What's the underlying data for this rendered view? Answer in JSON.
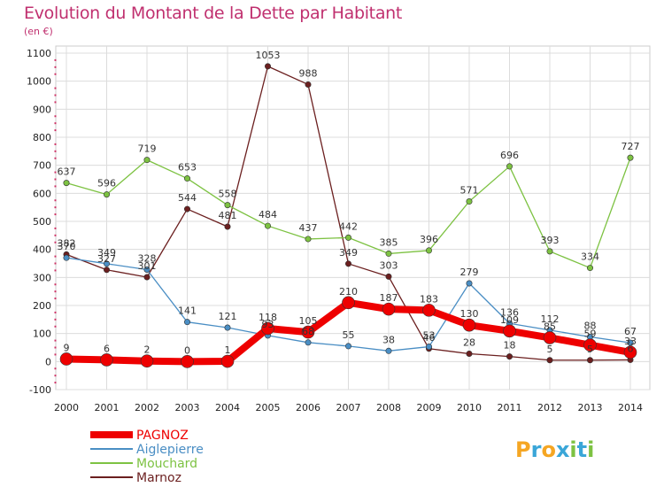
{
  "title": "Evolution du Montant de la Dette par Habitant",
  "unit_label": "(en €)",
  "brand": "Proxiti",
  "chart_data": {
    "type": "line",
    "title": "Evolution du Montant de la Dette par Habitant",
    "subtitle": "(en €)",
    "xlabel": "",
    "ylabel": "",
    "x": [
      "2000",
      "2001",
      "2002",
      "2003",
      "2004",
      "2005",
      "2006",
      "2007",
      "2008",
      "2009",
      "2010",
      "2011",
      "2012",
      "2013",
      "2014"
    ],
    "ylim": [
      -100,
      1100
    ],
    "yticks": [
      -100,
      0,
      100,
      200,
      300,
      400,
      500,
      600,
      700,
      800,
      900,
      1000,
      1100
    ],
    "grid": true,
    "legend_position": "bottom-left",
    "series": [
      {
        "name": "PAGNOZ",
        "color": "#ee0000",
        "values": [
          9,
          6,
          2,
          0,
          1,
          118,
          105,
          210,
          187,
          183,
          130,
          109,
          85,
          59,
          33
        ],
        "labels": [
          "9",
          "6",
          "2",
          "0",
          "1",
          "118",
          "105",
          "210",
          "187",
          "183",
          "130",
          "109",
          "85",
          "59",
          "33"
        ]
      },
      {
        "name": "Aiglepierre",
        "color": "#4a8ec4",
        "values": [
          370,
          349,
          328,
          141,
          121,
          93,
          68,
          55,
          38,
          53,
          279,
          136,
          112,
          88,
          67
        ],
        "labels": [
          "370",
          "349",
          "328",
          "141",
          "121",
          "93",
          "68",
          "55",
          "38",
          "53",
          "279",
          "136",
          "112",
          "88",
          "67"
        ]
      },
      {
        "name": "Mouchard",
        "color": "#7dc242",
        "values": [
          637,
          596,
          719,
          653,
          558,
          484,
          437,
          442,
          385,
          396,
          571,
          696,
          393,
          334,
          727
        ],
        "labels": [
          "637",
          "596",
          "719",
          "653",
          "558",
          "484",
          "437",
          "442",
          "385",
          "396",
          "571",
          "696",
          "393",
          "334",
          "727"
        ]
      },
      {
        "name": "Marnoz",
        "color": "#6b1f1f",
        "values": [
          382,
          327,
          301,
          544,
          481,
          1053,
          988,
          349,
          303,
          46,
          28,
          18,
          5,
          5,
          6
        ],
        "labels": [
          "382",
          "327",
          "301",
          "544",
          "481",
          "1053",
          "988",
          "349",
          "303",
          "46",
          "28",
          "18",
          "5",
          "5",
          "6"
        ]
      }
    ]
  }
}
